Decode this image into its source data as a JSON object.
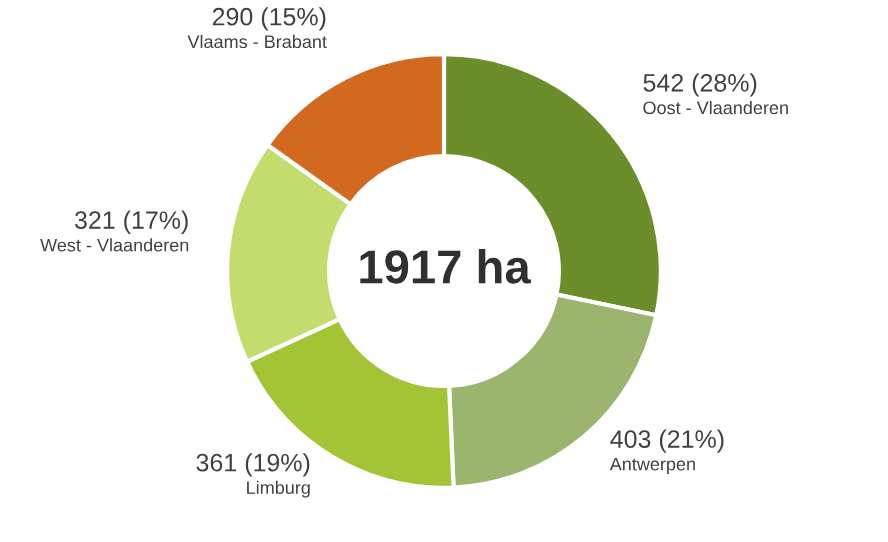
{
  "chart_data": {
    "type": "donut",
    "categories": [
      "Oost - Vlaanderen",
      "Antwerpen",
      "Limburg",
      "West - Vlaanderen",
      "Vlaams - Brabant"
    ],
    "values": [
      542,
      403,
      361,
      321,
      290
    ],
    "value_labels": [
      "542 (28%)",
      "403 (21%)",
      "361 (19%)",
      "321 (17%)",
      "290 (15%)"
    ],
    "colors": [
      "#6b8e2a",
      "#9cb56e",
      "#a3c435",
      "#c3dc6e",
      "#d2691e"
    ],
    "annotations": [
      "1917 ha"
    ],
    "legend": false
  }
}
